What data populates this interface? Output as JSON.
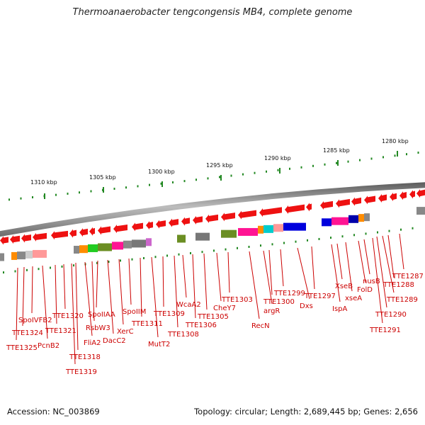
{
  "title": "Thermoanaerobacter tengcongensis MB4, complete genome",
  "accession": "Accession: NC_003869",
  "summary": "Topology: circular; Length: 2,689,445 bp; Genes: 2,656",
  "colors": {
    "arrow": "#ee1111",
    "tick": "#228822",
    "label": "#cc0000",
    "backbone": "#888888"
  },
  "scale_ticks": [
    {
      "label": "1310 kbp",
      "at": 1310
    },
    {
      "label": "1305 kbp",
      "at": 1305
    },
    {
      "label": "1300 kbp",
      "at": 1300
    },
    {
      "label": "1295 kbp",
      "at": 1295
    },
    {
      "label": "1290 kbp",
      "at": 1290
    },
    {
      "label": "1285 kbp",
      "at": 1285
    },
    {
      "label": "1280 kbp",
      "at": 1280
    }
  ],
  "genes": [
    {
      "label": "TTE1325"
    },
    {
      "label": "TTE1324"
    },
    {
      "label": "SpoIVFB2"
    },
    {
      "label": "PcnB2"
    },
    {
      "label": "TTE1321"
    },
    {
      "label": "TTE1320"
    },
    {
      "label": "TTE1319"
    },
    {
      "label": "TTE1318"
    },
    {
      "label": "FliA2"
    },
    {
      "label": "RsbW3"
    },
    {
      "label": "SpoIIAA"
    },
    {
      "label": "DacC2"
    },
    {
      "label": "XerC"
    },
    {
      "label": "SpoIIM"
    },
    {
      "label": "TTE1311"
    },
    {
      "label": "MutT2"
    },
    {
      "label": "TTE1309"
    },
    {
      "label": "TTE1308"
    },
    {
      "label": "WcaA2"
    },
    {
      "label": "TTE1306"
    },
    {
      "label": "TTE1305"
    },
    {
      "label": "CheY7"
    },
    {
      "label": "TTE1303"
    },
    {
      "label": "RecN"
    },
    {
      "label": "argR"
    },
    {
      "label": "TTE1300"
    },
    {
      "label": "TTE1299"
    },
    {
      "label": "Dxs"
    },
    {
      "label": "TTE1297"
    },
    {
      "label": "IspA"
    },
    {
      "label": "XseB"
    },
    {
      "label": "xseA"
    },
    {
      "label": "FolD"
    },
    {
      "label": "nusB"
    },
    {
      "label": "TTE1291"
    },
    {
      "label": "TTE1290"
    },
    {
      "label": "TTE1289"
    },
    {
      "label": "TTE1288"
    },
    {
      "label": "TTE1287"
    }
  ]
}
